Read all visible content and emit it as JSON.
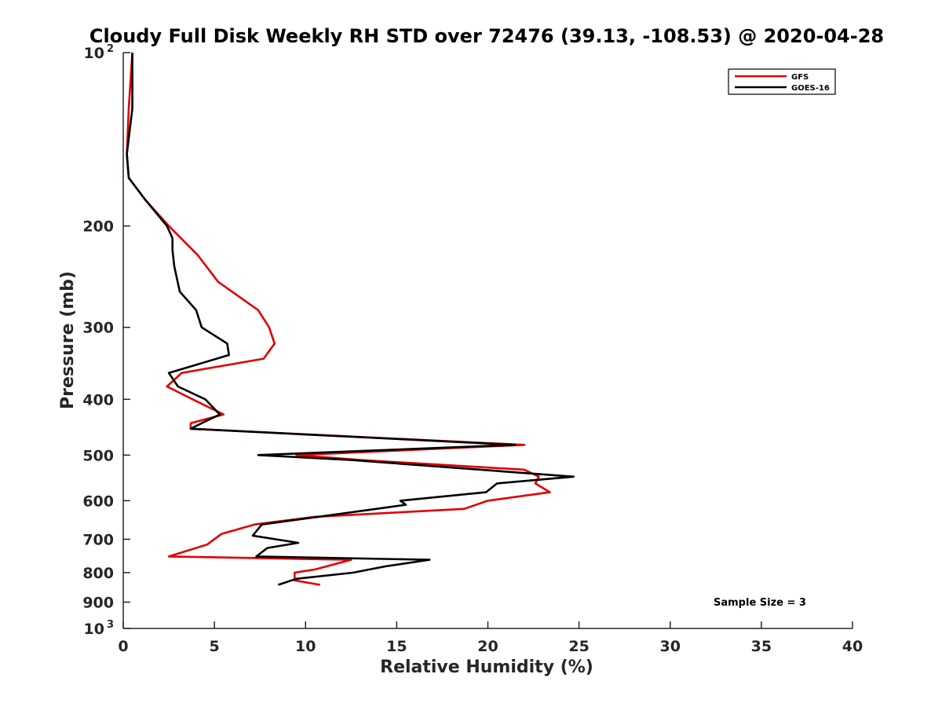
{
  "chart_data": {
    "type": "line",
    "title": "Cloudy Full Disk Weekly RH STD over 72476 (39.13, -108.53) @ 2020-04-28",
    "xlabel": "Relative Humidity (%)",
    "ylabel": "Pressure (mb)",
    "xlim": [
      0,
      40
    ],
    "ylim": [
      100,
      1000
    ],
    "y_scale": "log",
    "y_reversed": true,
    "grid": false,
    "legend_position": "top-right",
    "x_ticks": [
      "0",
      "5",
      "10",
      "15",
      "20",
      "25",
      "30",
      "35",
      "40"
    ],
    "y_ticks": [
      {
        "value": 100,
        "base": "10",
        "exp": "2"
      },
      {
        "value": 200,
        "label": "200"
      },
      {
        "value": 300,
        "label": "300"
      },
      {
        "value": 400,
        "label": "400"
      },
      {
        "value": 500,
        "label": "500"
      },
      {
        "value": 600,
        "label": "600"
      },
      {
        "value": 700,
        "label": "700"
      },
      {
        "value": 800,
        "label": "800"
      },
      {
        "value": 900,
        "label": "900"
      },
      {
        "value": 1000,
        "base": "10",
        "exp": "3"
      }
    ],
    "annotation": "Sample Size = 3",
    "series": [
      {
        "name": "GFS",
        "color": "#e00000",
        "points": [
          [
            0.5,
            100
          ],
          [
            0.3,
            125
          ],
          [
            0.2,
            150
          ],
          [
            0.3,
            165
          ],
          [
            1.2,
            180
          ],
          [
            2.5,
            200
          ],
          [
            4.1,
            225
          ],
          [
            5.2,
            250
          ],
          [
            7.4,
            280
          ],
          [
            8.0,
            300
          ],
          [
            8.3,
            320
          ],
          [
            7.7,
            340
          ],
          [
            3.2,
            360
          ],
          [
            2.4,
            380
          ],
          [
            3.8,
            400
          ],
          [
            5.5,
            425
          ],
          [
            3.7,
            440
          ],
          [
            3.7,
            450
          ],
          [
            22.0,
            480
          ],
          [
            9.5,
            500
          ],
          [
            13.0,
            510
          ],
          [
            22.0,
            530
          ],
          [
            22.8,
            545
          ],
          [
            22.6,
            560
          ],
          [
            23.4,
            580
          ],
          [
            20.0,
            600
          ],
          [
            18.7,
            620
          ],
          [
            10.5,
            640
          ],
          [
            7.2,
            660
          ],
          [
            5.4,
            685
          ],
          [
            4.6,
            715
          ],
          [
            2.5,
            750
          ],
          [
            12.5,
            760
          ],
          [
            10.5,
            790
          ],
          [
            9.4,
            800
          ],
          [
            9.4,
            825
          ],
          [
            10.8,
            840
          ]
        ]
      },
      {
        "name": "GOES-16",
        "color": "#000000",
        "points": [
          [
            0.5,
            100
          ],
          [
            0.5,
            125
          ],
          [
            0.2,
            150
          ],
          [
            0.3,
            165
          ],
          [
            1.2,
            180
          ],
          [
            2.4,
            200
          ],
          [
            2.7,
            210
          ],
          [
            2.7,
            220
          ],
          [
            2.8,
            235
          ],
          [
            3.1,
            260
          ],
          [
            4.0,
            280
          ],
          [
            4.3,
            300
          ],
          [
            5.7,
            320
          ],
          [
            5.8,
            335
          ],
          [
            2.5,
            360
          ],
          [
            3.0,
            380
          ],
          [
            4.5,
            400
          ],
          [
            5.3,
            425
          ],
          [
            4.3,
            440
          ],
          [
            3.7,
            450
          ],
          [
            21.5,
            480
          ],
          [
            7.4,
            500
          ],
          [
            12.5,
            510
          ],
          [
            24.7,
            545
          ],
          [
            20.5,
            560
          ],
          [
            19.9,
            580
          ],
          [
            15.2,
            600
          ],
          [
            15.5,
            610
          ],
          [
            10.7,
            640
          ],
          [
            7.6,
            660
          ],
          [
            7.1,
            690
          ],
          [
            9.6,
            710
          ],
          [
            7.9,
            725
          ],
          [
            7.3,
            750
          ],
          [
            16.8,
            760
          ],
          [
            14.4,
            780
          ],
          [
            12.6,
            800
          ],
          [
            9.5,
            820
          ],
          [
            8.5,
            840
          ]
        ]
      }
    ]
  }
}
